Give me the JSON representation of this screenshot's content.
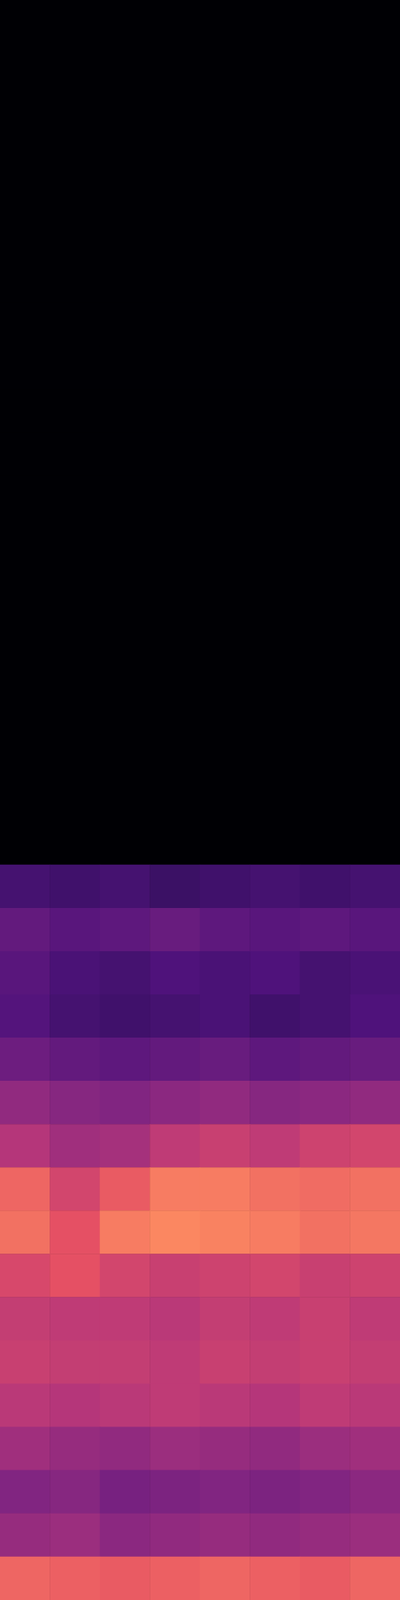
{
  "chart_data": {
    "type": "heatmap",
    "x": [
      null,
      null,
      null,
      null,
      null,
      null,
      null,
      null
    ],
    "y": [
      null,
      null,
      null,
      null,
      null,
      null,
      null,
      null,
      null,
      null,
      null,
      null,
      null,
      null,
      null,
      null,
      null,
      null,
      null,
      null,
      null,
      null,
      null,
      null,
      null,
      null,
      null,
      null,
      null,
      null,
      null,
      null,
      null,
      null,
      null,
      null,
      null
    ],
    "z": [
      [
        -80,
        -80,
        -80,
        -80,
        -80,
        -80,
        -80,
        -80
      ],
      [
        -80,
        -80,
        -80,
        -80,
        -80,
        -80,
        -80,
        -80
      ],
      [
        -80,
        -80,
        -80,
        -80,
        -80,
        -80,
        -80,
        -80
      ],
      [
        -80,
        -80,
        -80,
        -80,
        -80,
        -80,
        -80,
        -80
      ],
      [
        -80,
        -80,
        -80,
        -80,
        -80,
        -80,
        -80,
        -80
      ],
      [
        -80,
        -80,
        -80,
        -80,
        -80,
        -80,
        -80,
        -80
      ],
      [
        -80,
        -80,
        -80,
        -80,
        -80,
        -80,
        -80,
        -80
      ],
      [
        -80,
        -80,
        -80,
        -80,
        -80,
        -80,
        -80,
        -80
      ],
      [
        -80,
        -80,
        -80,
        -80,
        -80,
        -80,
        -80,
        -80
      ],
      [
        -80,
        -80,
        -80,
        -80,
        -80,
        -80,
        -80,
        -80
      ],
      [
        -80,
        -80,
        -80,
        -80,
        -80,
        -80,
        -80,
        -80
      ],
      [
        -80,
        -80,
        -80,
        -80,
        -80,
        -80,
        -80,
        -80
      ],
      [
        -80,
        -80,
        -80,
        -80,
        -80,
        -80,
        -80,
        -80
      ],
      [
        -80,
        -80,
        -80,
        -80,
        -80,
        -80,
        -80,
        -80
      ],
      [
        -80,
        -80,
        -80,
        -80,
        -80,
        -80,
        -80,
        -80
      ],
      [
        -80,
        -80,
        -80,
        -80,
        -80,
        -80,
        -80,
        -80
      ],
      [
        -80,
        -80,
        -80,
        -80,
        -80,
        -80,
        -80,
        -80
      ],
      [
        -80,
        -80,
        -80,
        -80,
        -80,
        -80,
        -80,
        -80
      ],
      [
        -80,
        -80,
        -80,
        -80,
        -80,
        -80,
        -80,
        -80
      ],
      [
        -80,
        -80,
        -80,
        -80,
        -80,
        -80,
        -80,
        -80
      ],
      [
        -62,
        -63,
        -62,
        -64,
        -63,
        -62,
        -63,
        -62
      ],
      [
        -56,
        -58,
        -57,
        -55,
        -57,
        -58,
        -57,
        -58
      ],
      [
        -58,
        -61,
        -62,
        -60,
        -61,
        -60,
        -62,
        -61
      ],
      [
        -59,
        -62,
        -63,
        -62,
        -61,
        -63,
        -62,
        -60
      ],
      [
        -54,
        -56,
        -57,
        -56,
        -55,
        -57,
        -56,
        -55
      ],
      [
        -47,
        -49,
        -50,
        -48,
        -47,
        -49,
        -48,
        -47
      ],
      [
        -40,
        -44,
        -43,
        -38,
        -36,
        -38,
        -35,
        -34
      ],
      [
        -26,
        -34,
        -28,
        -22,
        -22,
        -24,
        -25,
        -24
      ],
      [
        -24,
        -30,
        -22,
        -20,
        -21,
        -22,
        -24,
        -23
      ],
      [
        -33,
        -30,
        -34,
        -36,
        -35,
        -34,
        -36,
        -35
      ],
      [
        -37,
        -38,
        -38,
        -39,
        -37,
        -38,
        -36,
        -38
      ],
      [
        -36,
        -37,
        -37,
        -38,
        -36,
        -37,
        -36,
        -37
      ],
      [
        -39,
        -40,
        -39,
        -38,
        -39,
        -40,
        -38,
        -39
      ],
      [
        -44,
        -46,
        -47,
        -45,
        -46,
        -47,
        -45,
        -44
      ],
      [
        -50,
        -49,
        -52,
        -51,
        -50,
        -51,
        -50,
        -48
      ],
      [
        -46,
        -45,
        -48,
        -47,
        -46,
        -47,
        -46,
        -45
      ],
      [
        -26,
        -27,
        -28,
        -27,
        -26,
        -27,
        -28,
        -26
      ]
    ],
    "zlim": [
      -80,
      0
    ],
    "tick_labels": false
  }
}
